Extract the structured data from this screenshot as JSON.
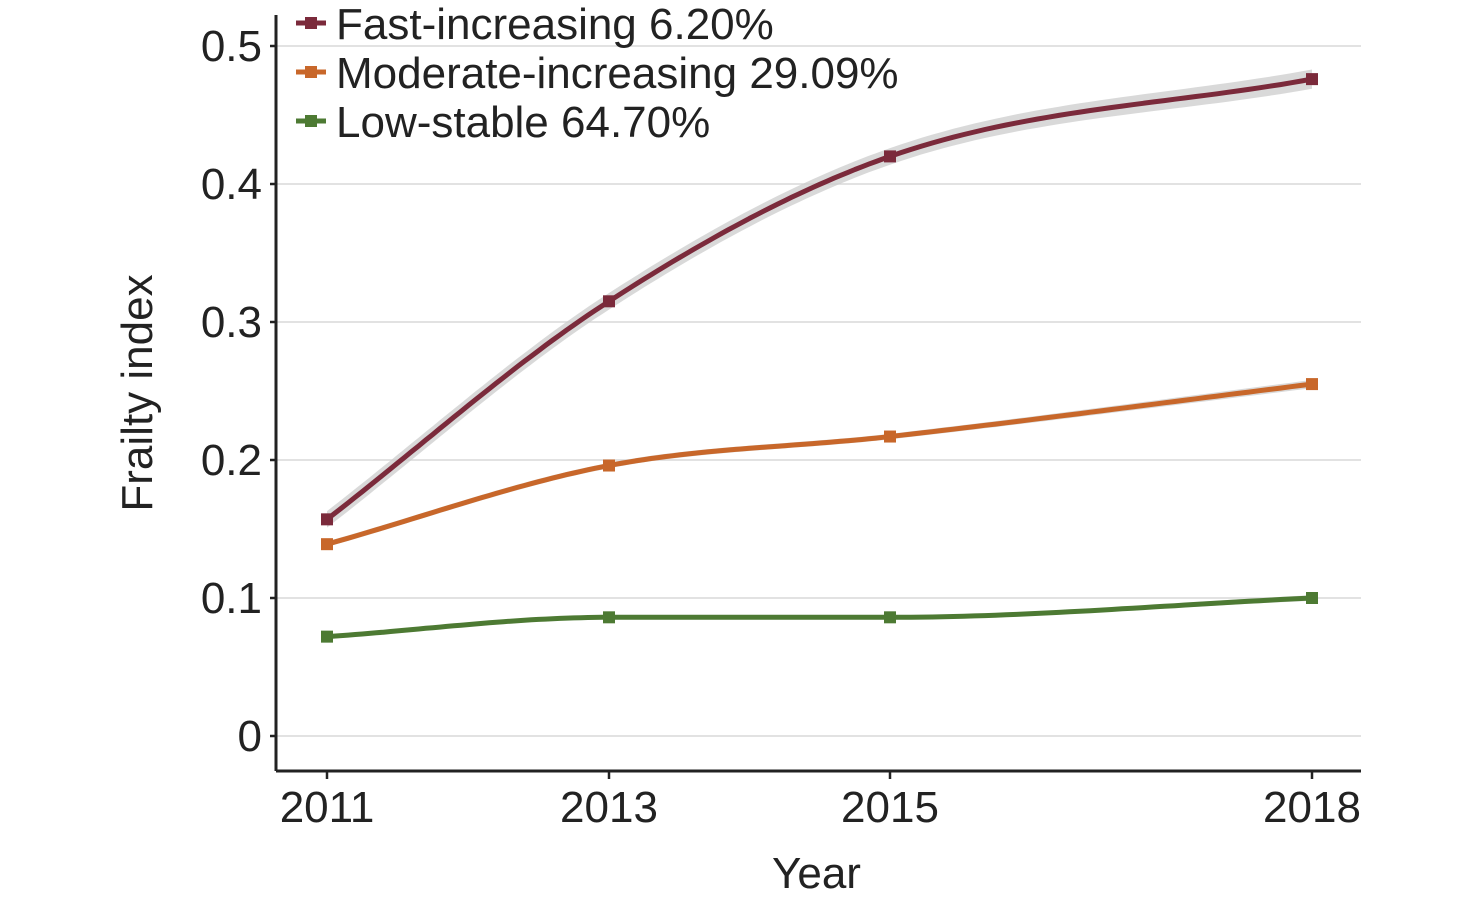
{
  "chart_data": {
    "type": "line",
    "title": "",
    "xlabel": "Year",
    "ylabel": "Frailty index",
    "x": [
      2011,
      2013,
      2015,
      2018
    ],
    "x_tick_labels": [
      "2011",
      "2013",
      "2015",
      "2018"
    ],
    "y_tick_values": [
      0,
      0.1,
      0.2,
      0.3,
      0.4,
      0.5
    ],
    "y_tick_labels": [
      "0",
      "0.1",
      "0.2",
      "0.3",
      "0.4",
      "0.5"
    ],
    "ylim": [
      -0.025,
      0.525
    ],
    "grid": "horizontal",
    "legend_position": "top-left",
    "confidence_band": true,
    "band_color": "#cccccc",
    "series": [
      {
        "name": "Fast-increasing 6.20%",
        "color": "#7b2a3b",
        "values": [
          0.157,
          0.315,
          0.42,
          0.476
        ],
        "band_halfwidth": [
          0.006,
          0.006,
          0.006,
          0.007
        ]
      },
      {
        "name": "Moderate-increasing 29.09%",
        "color": "#c8672a",
        "values": [
          0.139,
          0.196,
          0.217,
          0.255
        ],
        "band_halfwidth": [
          0.002,
          0.002,
          0.002,
          0.003
        ]
      },
      {
        "name": "Low-stable 64.70%",
        "color": "#4d7a33",
        "values": [
          0.072,
          0.086,
          0.086,
          0.1
        ],
        "band_halfwidth": [
          0.001,
          0.001,
          0.001,
          0.002
        ]
      }
    ]
  }
}
